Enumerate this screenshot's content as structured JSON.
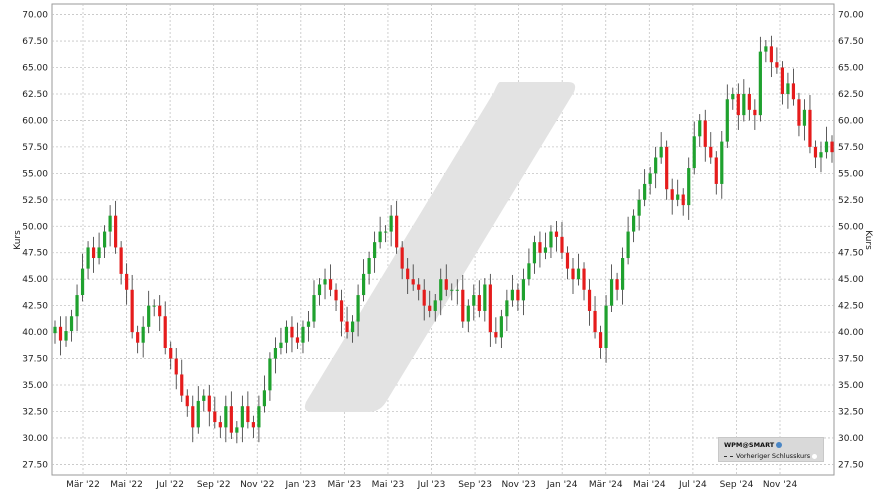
{
  "chart_data": {
    "type": "candlestick",
    "ylabel": "Kurs",
    "ylim": [
      26.5,
      71
    ],
    "y_ticks": [
      "70.00",
      "67.50",
      "65.00",
      "62.50",
      "60.00",
      "57.50",
      "55.00",
      "52.50",
      "50.00",
      "47.50",
      "45.00",
      "42.50",
      "40.00",
      "37.50",
      "35.00",
      "32.50",
      "30.00",
      "27.50"
    ],
    "x_ticks": [
      "Mär '22",
      "Mai '22",
      "Jul '22",
      "Sep '22",
      "Nov '22",
      "Jan '23",
      "Mär '23",
      "Mai '23",
      "Jul '23",
      "Sep '23",
      "Nov '23",
      "Jan '24",
      "Mär '24",
      "Mai '24",
      "Jul '24",
      "Sep '24",
      "Nov '24"
    ],
    "grid": true,
    "legend": {
      "symbol": "WPM@SMART",
      "prev_close": "Vorheriger Schlusskurs",
      "placement": "bottom-right"
    },
    "up_color": "#1fa12e",
    "down_color": "#e51c1c",
    "closes": [
      40.5,
      39.2,
      40.1,
      41.5,
      43.5,
      46.0,
      48.0,
      47.0,
      48.0,
      49.5,
      51.0,
      48.0,
      45.5,
      44.0,
      40.0,
      39.0,
      40.5,
      42.5,
      42.5,
      41.5,
      38.5,
      37.5,
      36.0,
      34.0,
      33.0,
      31.0,
      33.5,
      34.0,
      32.5,
      31.5,
      31.0,
      33.0,
      30.5,
      31.0,
      33.0,
      31.5,
      31.0,
      33.0,
      34.5,
      37.5,
      38.5,
      39.0,
      40.5,
      39.5,
      39.0,
      40.5,
      41.0,
      43.5,
      44.5,
      45.0,
      44.0,
      43.0,
      41.0,
      40.0,
      41.0,
      43.5,
      45.5,
      47.0,
      48.5,
      49.5,
      49.5,
      51.0,
      48.0,
      46.0,
      45.0,
      44.5,
      44.0,
      42.5,
      42.0,
      43.0,
      45.0,
      44.0,
      44.0,
      44.0,
      41.0,
      42.5,
      43.5,
      42.0,
      44.5,
      40.0,
      39.5,
      41.5,
      43.0,
      44.0,
      43.0,
      45.0,
      46.5,
      48.5,
      47.5,
      48.0,
      49.5,
      49.0,
      47.5,
      46.0,
      45.0,
      46.0,
      44.0,
      42.0,
      40.0,
      38.5,
      42.5,
      45.0,
      44.0,
      47.0,
      49.5,
      51.0,
      52.5,
      54.0,
      55.0,
      56.5,
      57.5,
      53.5,
      52.5,
      53.0,
      52.0,
      55.5,
      58.5,
      60.0,
      57.5,
      56.5,
      54.0,
      58.0,
      62.0,
      62.5,
      60.5,
      62.5,
      61.0,
      60.5,
      66.5,
      67.0,
      65.5,
      65.0,
      62.5,
      63.5,
      62.0,
      59.5,
      61.0,
      57.5,
      56.5,
      57.0,
      58.0,
      57.0
    ]
  }
}
